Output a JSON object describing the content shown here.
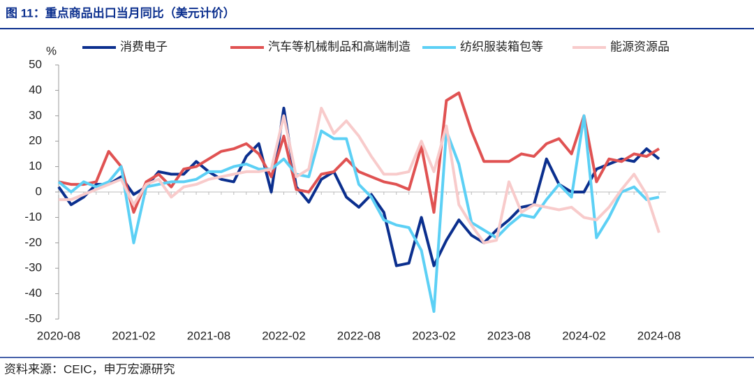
{
  "chart_data": {
    "type": "line",
    "title": "图 11：重点商品出口当月同比（美元计价）",
    "y_label": "%",
    "source": "资料来源：CEIC，申万宏源研究",
    "categories": [
      "2020-08",
      null,
      null,
      null,
      null,
      null,
      "2021-02",
      null,
      null,
      null,
      null,
      null,
      "2021-08",
      null,
      null,
      null,
      null,
      null,
      "2022-02",
      null,
      null,
      null,
      null,
      null,
      "2022-08",
      null,
      null,
      null,
      null,
      null,
      "2023-02",
      null,
      null,
      null,
      null,
      null,
      "2023-08",
      null,
      null,
      null,
      null,
      null,
      "2024-02",
      null,
      null,
      null,
      null,
      null,
      "2024-08"
    ],
    "series": [
      {
        "name": "消费电子",
        "color": "#0b2f8e",
        "values": [
          2,
          -5,
          -2,
          3,
          3,
          6,
          -1,
          2,
          8,
          7,
          7,
          12,
          8,
          5,
          4,
          14,
          19,
          0,
          33,
          2,
          -4,
          5,
          8,
          -2,
          -6,
          -1,
          -8,
          -29,
          -28,
          -10,
          -29,
          -19,
          -11,
          -17,
          -20,
          -15,
          -11,
          -6,
          -5,
          13,
          3,
          0,
          0,
          9,
          11,
          13,
          12,
          17,
          13
        ]
      },
      {
        "name": "汽车等机械制品和高端制造",
        "color": "#e05252",
        "values": [
          4,
          3,
          3,
          4,
          16,
          10,
          -8,
          4,
          7,
          2,
          9,
          10,
          13,
          16,
          17,
          19,
          15,
          6,
          22,
          1,
          0,
          7,
          8,
          13,
          8,
          6,
          4,
          3,
          1,
          18,
          -8,
          36,
          39,
          24,
          12,
          12,
          12,
          15,
          14,
          19,
          21,
          15,
          30,
          4,
          13,
          12,
          15,
          14,
          17
        ]
      },
      {
        "name": "纺织服装箱包等",
        "color": "#5cd0f5",
        "values": [
          4,
          0,
          4,
          2,
          4,
          10,
          -20,
          2,
          3,
          4,
          4,
          5,
          8,
          8,
          10,
          11,
          9,
          9,
          13,
          7,
          6,
          24,
          21,
          21,
          3,
          -2,
          -11,
          -13,
          -14,
          -23,
          -47,
          24,
          11,
          -12,
          -15,
          -18,
          -13,
          -9,
          -10,
          -3,
          3,
          -2,
          30,
          -18,
          -10,
          0,
          2,
          -3,
          -2
        ]
      },
      {
        "name": "能源资源品",
        "color": "#f8cbcb",
        "values": [
          -3,
          -3,
          -1,
          1,
          3,
          5,
          -5,
          3,
          5,
          -2,
          2,
          3,
          5,
          6,
          7,
          8,
          8,
          9,
          30,
          6,
          9,
          33,
          23,
          28,
          22,
          14,
          7,
          7,
          8,
          20,
          8,
          26,
          -5,
          -13,
          -20,
          -19,
          4,
          -8,
          -5,
          -6,
          -7,
          -6,
          -10,
          -11,
          -6,
          1,
          7,
          -1,
          -16
        ]
      }
    ],
    "ylim": [
      -50,
      50
    ],
    "yticks": [
      -50,
      -40,
      -30,
      -20,
      -10,
      0,
      10,
      20,
      30,
      40,
      50
    ]
  }
}
